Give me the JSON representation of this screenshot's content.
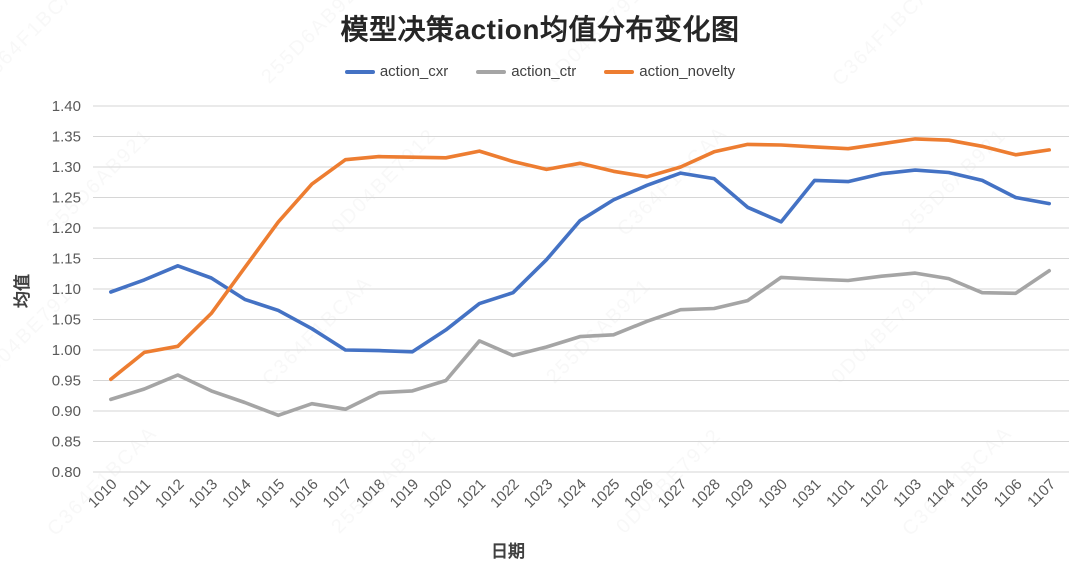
{
  "title": "模型决策action均值分布变化图",
  "legend": {
    "position": "top",
    "items": [
      {
        "label": "action_cxr",
        "color": "#4472C4"
      },
      {
        "label": "action_ctr",
        "color": "#A5A5A5"
      },
      {
        "label": "action_novelty",
        "color": "#ED7D31"
      }
    ]
  },
  "axes": {
    "x_title": "日期",
    "y_title": "均值",
    "y_tick_labels": [
      "1.40",
      "1.35",
      "1.30",
      "1.25",
      "1.20",
      "1.15",
      "1.10",
      "1.05",
      "1.00",
      "0.95",
      "0.90",
      "0.85",
      "0.80"
    ]
  },
  "chart_data": {
    "type": "line",
    "title": "模型决策action均值分布变化图",
    "xlabel": "日期",
    "ylabel": "均值",
    "ylim": [
      0.8,
      1.4
    ],
    "ytick_step": 0.05,
    "grid": "horizontal-only",
    "legend_position": "top-center",
    "categories": [
      "1010",
      "1011",
      "1012",
      "1013",
      "1014",
      "1015",
      "1016",
      "1017",
      "1018",
      "1019",
      "1020",
      "1021",
      "1022",
      "1023",
      "1024",
      "1025",
      "1026",
      "1027",
      "1028",
      "1029",
      "1030",
      "1031",
      "1101",
      "1102",
      "1103",
      "1104",
      "1105",
      "1106",
      "1107"
    ],
    "series": [
      {
        "name": "action_cxr",
        "color": "#4472C4",
        "values": [
          1.095,
          1.115,
          1.138,
          1.118,
          1.083,
          1.065,
          1.035,
          1.0,
          0.999,
          0.997,
          1.033,
          1.076,
          1.094,
          1.148,
          1.212,
          1.246,
          1.27,
          1.29,
          1.281,
          1.234,
          1.21,
          1.278,
          1.276,
          1.289,
          1.295,
          1.291,
          1.278,
          1.25,
          1.24
        ]
      },
      {
        "name": "action_ctr",
        "color": "#A5A5A5",
        "values": [
          0.919,
          0.936,
          0.959,
          0.933,
          0.914,
          0.893,
          0.912,
          0.903,
          0.93,
          0.933,
          0.95,
          1.015,
          0.991,
          1.005,
          1.022,
          1.025,
          1.047,
          1.066,
          1.068,
          1.081,
          1.119,
          1.116,
          1.114,
          1.121,
          1.126,
          1.117,
          1.094,
          1.093,
          1.13
        ]
      },
      {
        "name": "action_novelty",
        "color": "#ED7D31",
        "values": [
          0.952,
          0.996,
          1.006,
          1.06,
          1.135,
          1.21,
          1.272,
          1.312,
          1.317,
          1.316,
          1.315,
          1.326,
          1.309,
          1.296,
          1.306,
          1.293,
          1.284,
          1.3,
          1.325,
          1.337,
          1.336,
          1.333,
          1.33,
          1.338,
          1.346,
          1.344,
          1.334,
          1.32,
          1.328
        ]
      }
    ]
  },
  "watermark": {
    "texts": [
      "C364F1BCAA",
      "255D6AB921",
      "0D04BE7912"
    ]
  }
}
